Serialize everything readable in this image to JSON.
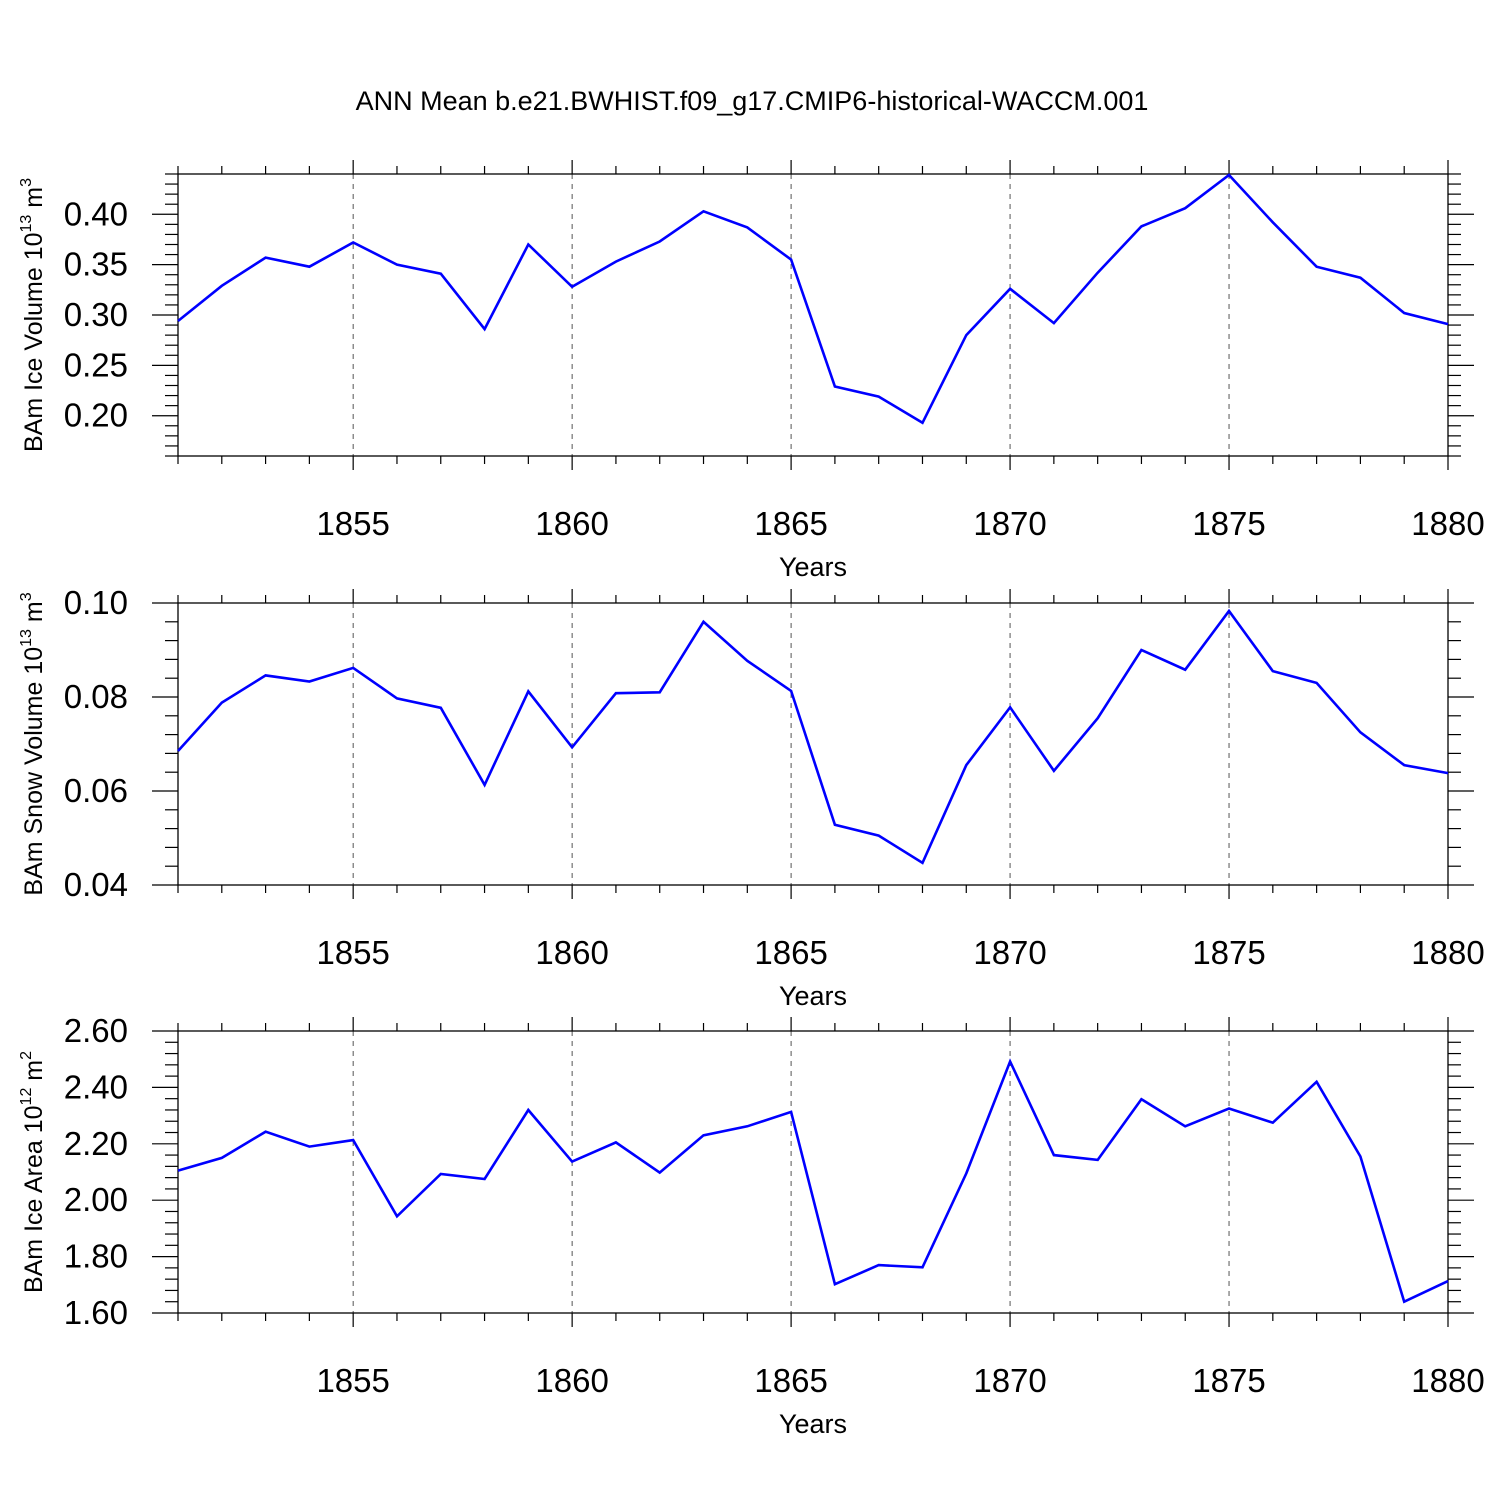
{
  "title": "ANN Mean b.e21.BWHIST.f09_g17.CMIP6-historical-WACCM.001",
  "colors": {
    "line": "#0000ff",
    "axis": "#000000",
    "grid": "#555555"
  },
  "chart_data": [
    {
      "type": "line",
      "ylabel": {
        "main": "BAm Ice Volume 10",
        "exp": "13",
        "unit": " m",
        "unit_exp": "3"
      },
      "xlabel": "Years",
      "xlim": [
        1851,
        1880
      ],
      "ylim": [
        0.16,
        0.44
      ],
      "yticks": [
        0.2,
        0.25,
        0.3,
        0.35,
        0.4
      ],
      "ytick_labels": [
        "0.20",
        "0.25",
        "0.30",
        "0.35",
        "0.40"
      ],
      "xticks": [
        1855,
        1860,
        1865,
        1870,
        1875,
        1880
      ],
      "xtick_labels": [
        "1855",
        "1860",
        "1865",
        "1870",
        "1875",
        "1880"
      ],
      "grid": "vertical dashed at labeled years",
      "x": [
        1851,
        1852,
        1853,
        1854,
        1855,
        1856,
        1857,
        1858,
        1859,
        1860,
        1861,
        1862,
        1863,
        1864,
        1865,
        1866,
        1867,
        1868,
        1869,
        1870,
        1871,
        1872,
        1873,
        1874,
        1875,
        1876,
        1877,
        1878,
        1879,
        1880
      ],
      "y": [
        0.294,
        0.329,
        0.357,
        0.348,
        0.372,
        0.35,
        0.341,
        0.286,
        0.37,
        0.328,
        0.353,
        0.373,
        0.403,
        0.387,
        0.355,
        0.229,
        0.219,
        0.193,
        0.28,
        0.326,
        0.292,
        0.342,
        0.388,
        0.406,
        0.439,
        0.392,
        0.348,
        0.337,
        0.302,
        0.291
      ]
    },
    {
      "type": "line",
      "ylabel": {
        "main": "BAm Snow Volume 10",
        "exp": "13",
        "unit": " m",
        "unit_exp": "3"
      },
      "xlabel": "Years",
      "xlim": [
        1851,
        1880
      ],
      "ylim": [
        0.04,
        0.1
      ],
      "yticks": [
        0.04,
        0.06,
        0.08,
        0.1
      ],
      "ytick_labels": [
        "0.04",
        "0.06",
        "0.08",
        "0.10"
      ],
      "xticks": [
        1855,
        1860,
        1865,
        1870,
        1875,
        1880
      ],
      "xtick_labels": [
        "1855",
        "1860",
        "1865",
        "1870",
        "1875",
        "1880"
      ],
      "grid": "vertical dashed at labeled years",
      "x": [
        1851,
        1852,
        1853,
        1854,
        1855,
        1856,
        1857,
        1858,
        1859,
        1860,
        1861,
        1862,
        1863,
        1864,
        1865,
        1866,
        1867,
        1868,
        1869,
        1870,
        1871,
        1872,
        1873,
        1874,
        1875,
        1876,
        1877,
        1878,
        1879,
        1880
      ],
      "y": [
        0.0685,
        0.0788,
        0.0846,
        0.0833,
        0.0862,
        0.0797,
        0.0777,
        0.0613,
        0.0812,
        0.0693,
        0.0808,
        0.081,
        0.096,
        0.0877,
        0.0813,
        0.0528,
        0.0505,
        0.0447,
        0.0655,
        0.0778,
        0.0643,
        0.0755,
        0.09,
        0.0858,
        0.0983,
        0.0855,
        0.083,
        0.0725,
        0.0655,
        0.0638
      ]
    },
    {
      "type": "line",
      "ylabel": {
        "main": "BAm Ice Area 10",
        "exp": "12",
        "unit": " m",
        "unit_exp": "2"
      },
      "xlabel": "Years",
      "xlim": [
        1851,
        1880
      ],
      "ylim": [
        1.6,
        2.6
      ],
      "yticks": [
        1.6,
        1.8,
        2.0,
        2.2,
        2.4,
        2.6
      ],
      "ytick_labels": [
        "1.60",
        "1.80",
        "2.00",
        "2.20",
        "2.40",
        "2.60"
      ],
      "xticks": [
        1855,
        1860,
        1865,
        1870,
        1875,
        1880
      ],
      "xtick_labels": [
        "1855",
        "1860",
        "1865",
        "1870",
        "1875",
        "1880"
      ],
      "grid": "vertical dashed at labeled years",
      "x": [
        1851,
        1852,
        1853,
        1854,
        1855,
        1856,
        1857,
        1858,
        1859,
        1860,
        1861,
        1862,
        1863,
        1864,
        1865,
        1866,
        1867,
        1868,
        1869,
        1870,
        1871,
        1872,
        1873,
        1874,
        1875,
        1876,
        1877,
        1878,
        1879,
        1880
      ],
      "y": [
        2.105,
        2.15,
        2.243,
        2.19,
        2.213,
        1.943,
        2.093,
        2.075,
        2.32,
        2.137,
        2.205,
        2.098,
        2.23,
        2.262,
        2.313,
        1.702,
        1.77,
        1.762,
        2.095,
        2.492,
        2.16,
        2.143,
        2.358,
        2.262,
        2.325,
        2.275,
        2.42,
        2.155,
        1.64,
        1.713
      ]
    }
  ]
}
